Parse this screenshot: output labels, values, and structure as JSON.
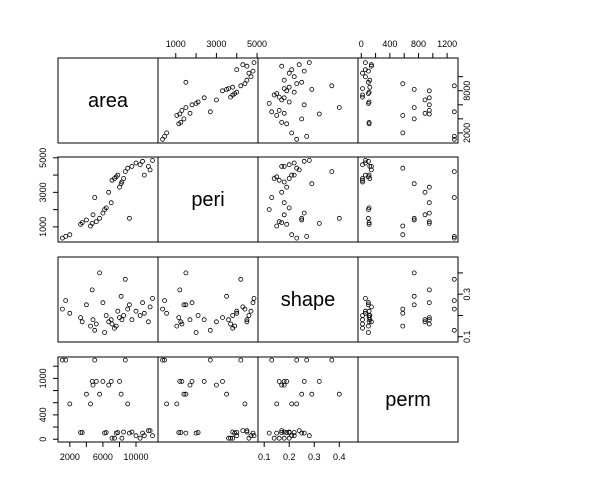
{
  "chart_data": {
    "type": "scatter",
    "kind": "pairs-matrix",
    "variables": [
      "area",
      "peri",
      "shape",
      "perm"
    ],
    "ranges": {
      "area": [
        1016,
        12212
      ],
      "peri": [
        308,
        4864
      ],
      "shape": [
        0.09,
        0.46
      ],
      "perm": [
        6,
        1300
      ]
    },
    "ticks": {
      "area": [
        2000,
        4000,
        6000,
        8000,
        10000
      ],
      "peri": [
        1000,
        2000,
        3000,
        4000,
        5000
      ],
      "shape": [
        0.1,
        0.2,
        0.3,
        0.4
      ],
      "perm": [
        0,
        200,
        400,
        600,
        800,
        1000,
        1200
      ]
    },
    "tick_labels": {
      "area": [
        "2000",
        "6000",
        "10000"
      ],
      "area_right": [
        "2000",
        "8000"
      ],
      "peri": [
        "1000",
        "3000",
        "5000"
      ],
      "shape": [
        "0.1",
        "0.2",
        "0.3",
        "0.4"
      ],
      "shape_right": [
        "0.1",
        "0.3"
      ],
      "perm": [
        "0",
        "400",
        "1000"
      ],
      "perm_top": [
        "0",
        "400",
        "800",
        "1200"
      ]
    },
    "points": [
      {
        "area": 1100,
        "peri": 350,
        "shape": 0.23,
        "perm": 1300
      },
      {
        "area": 1500,
        "peri": 450,
        "shape": 0.27,
        "perm": 1300
      },
      {
        "area": 2000,
        "peri": 550,
        "shape": 0.21,
        "perm": 580
      },
      {
        "area": 3300,
        "peri": 1150,
        "shape": 0.19,
        "perm": 110
      },
      {
        "area": 3500,
        "peri": 1250,
        "shape": 0.17,
        "perm": 110
      },
      {
        "area": 4000,
        "peri": 1400,
        "shape": 0.25,
        "perm": 740
      },
      {
        "area": 4500,
        "peri": 1050,
        "shape": 0.15,
        "perm": 580
      },
      {
        "area": 4700,
        "peri": 1200,
        "shape": 0.32,
        "perm": 950
      },
      {
        "area": 4800,
        "peri": 1700,
        "shape": 0.18,
        "perm": 890
      },
      {
        "area": 5000,
        "peri": 2700,
        "shape": 0.13,
        "perm": 1300
      },
      {
        "area": 5200,
        "peri": 1300,
        "shape": 0.16,
        "perm": 950
      },
      {
        "area": 5600,
        "peri": 1500,
        "shape": 0.4,
        "perm": 740
      },
      {
        "area": 6000,
        "peri": 1800,
        "shape": 0.26,
        "perm": 950
      },
      {
        "area": 6200,
        "peri": 2000,
        "shape": 0.12,
        "perm": 100
      },
      {
        "area": 6400,
        "peri": 2100,
        "shape": 0.2,
        "perm": 110
      },
      {
        "area": 6700,
        "peri": 3000,
        "shape": 0.17,
        "perm": 890
      },
      {
        "area": 7000,
        "peri": 2400,
        "shape": 0.18,
        "perm": 950
      },
      {
        "area": 7100,
        "peri": 3700,
        "shape": 0.16,
        "perm": 17
      },
      {
        "area": 7400,
        "peri": 3800,
        "shape": 0.14,
        "perm": 17
      },
      {
        "area": 7600,
        "peri": 3900,
        "shape": 0.15,
        "perm": 100
      },
      {
        "area": 7800,
        "peri": 4000,
        "shape": 0.22,
        "perm": 110
      },
      {
        "area": 8000,
        "peri": 3300,
        "shape": 0.19,
        "perm": 950
      },
      {
        "area": 8200,
        "peri": 3500,
        "shape": 0.29,
        "perm": 740
      },
      {
        "area": 8300,
        "peri": 3600,
        "shape": 0.18,
        "perm": 17
      },
      {
        "area": 8500,
        "peri": 3800,
        "shape": 0.2,
        "perm": 119
      },
      {
        "area": 8700,
        "peri": 4200,
        "shape": 0.37,
        "perm": 1300
      },
      {
        "area": 9000,
        "peri": 4400,
        "shape": 0.23,
        "perm": 580
      },
      {
        "area": 9200,
        "peri": 1500,
        "shape": 0.25,
        "perm": 100
      },
      {
        "area": 9500,
        "peri": 4500,
        "shape": 0.18,
        "perm": 119
      },
      {
        "area": 10000,
        "peri": 4700,
        "shape": 0.22,
        "perm": 58
      },
      {
        "area": 10500,
        "peri": 4600,
        "shape": 0.2,
        "perm": 17
      },
      {
        "area": 10800,
        "peri": 4800,
        "shape": 0.26,
        "perm": 100
      },
      {
        "area": 11000,
        "peri": 4000,
        "shape": 0.21,
        "perm": 58
      },
      {
        "area": 11500,
        "peri": 4500,
        "shape": 0.17,
        "perm": 142
      },
      {
        "area": 11700,
        "peri": 4300,
        "shape": 0.24,
        "perm": 142
      },
      {
        "area": 12000,
        "peri": 4850,
        "shape": 0.28,
        "perm": 58
      }
    ]
  }
}
